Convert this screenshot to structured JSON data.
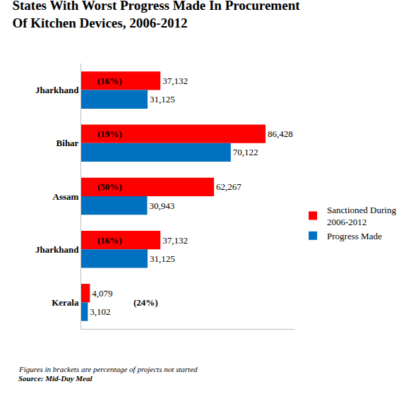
{
  "chart_data": {
    "type": "bar",
    "orientation": "horizontal",
    "title": "States With Worst Progress Made In Procurement Of Kitchen Devices, 2006-2012",
    "categories": [
      "Jharkhand",
      "Bihar",
      "Assam",
      "Jharkhand",
      "Kerala"
    ],
    "series": [
      {
        "name": "Sanctioned During 2006-2012",
        "color": "#ff0000",
        "values": [
          37132,
          86428,
          62267,
          37132,
          4079
        ],
        "value_labels": [
          "37,132",
          "86,428",
          "62,267",
          "37,132",
          "4,079"
        ]
      },
      {
        "name": "Progress Made",
        "color": "#0070c0",
        "values": [
          31125,
          70122,
          30943,
          31125,
          3102
        ],
        "value_labels": [
          "31,125",
          "70,122",
          "30,943",
          "31,125",
          "3,102"
        ]
      }
    ],
    "annotations": [
      "(16%)",
      "(19%)",
      "(50%)",
      "(16%)",
      "(24%)"
    ],
    "notes": [
      "Figures in brackets are percentage of projects not started",
      "Source: Mid-Day Meal"
    ],
    "xlim": [
      0,
      100000
    ],
    "xticks": [],
    "grid": false,
    "legend": "right",
    "data_labels": true,
    "tick_labels": "y"
  }
}
